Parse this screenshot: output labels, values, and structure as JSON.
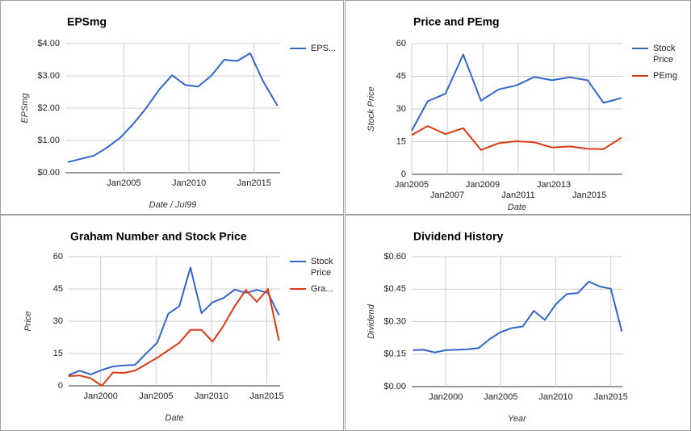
{
  "chart_data": [
    {
      "type": "line",
      "title": "EPSmg",
      "x_label": "Date / Jul99",
      "y_label": "EPSmg",
      "x": [
        2000.7,
        2001.7,
        2002.7,
        2003.7,
        2004.7,
        2005.7,
        2006.7,
        2007.7,
        2008.7,
        2009.7,
        2010.7,
        2011.7,
        2012.7,
        2013.7,
        2014.7,
        2015.7,
        2016.8
      ],
      "series": [
        {
          "name": "EPS...",
          "color": "#3366cc",
          "values": [
            0.33,
            0.43,
            0.53,
            0.78,
            1.08,
            1.5,
            2.0,
            2.57,
            3.02,
            2.72,
            2.67,
            3.0,
            3.5,
            3.46,
            3.7,
            2.83,
            2.07
          ]
        }
      ],
      "xlim": [
        2000.5,
        2017
      ],
      "xticks": [
        {
          "value": 2005,
          "label": "Jan2005"
        },
        {
          "value": 2010,
          "label": "Jan2010"
        },
        {
          "value": 2015,
          "label": "Jan2015"
        }
      ],
      "ylim": [
        0,
        4
      ],
      "yticks": [
        {
          "value": 0,
          "label": "$0.00"
        },
        {
          "value": 1,
          "label": "$1.00"
        },
        {
          "value": 2,
          "label": "$2.00"
        },
        {
          "value": 3,
          "label": "$3.00"
        },
        {
          "value": 4,
          "label": "$4.00"
        }
      ],
      "grid": true,
      "legend": "right"
    },
    {
      "type": "line",
      "title": "Price and PEmg",
      "x_label": "Date",
      "y_label": "Stock Price",
      "x": [
        2005.0,
        2005.9,
        2006.9,
        2007.9,
        2008.9,
        2009.9,
        2010.9,
        2011.9,
        2012.9,
        2013.9,
        2014.9,
        2015.8,
        2016.8
      ],
      "series": [
        {
          "name": "Stock Price",
          "color": "#3366cc",
          "values": [
            20,
            33.5,
            37,
            55,
            33.8,
            39,
            40.8,
            44.7,
            43.2,
            44.5,
            43.2,
            32.8,
            35
          ]
        },
        {
          "name": "PEmg",
          "color": "#dc3912",
          "values": [
            18,
            22.2,
            18.5,
            21.2,
            11.2,
            14.3,
            15.2,
            14.7,
            12.3,
            12.8,
            11.7,
            11.6,
            16.8
          ]
        }
      ],
      "xlim": [
        2005,
        2016.86
      ],
      "xticks": [
        {
          "value": 2005,
          "label": "Jan2005"
        },
        {
          "value": 2007,
          "label": "Jan2007"
        },
        {
          "value": 2009,
          "label": "Jan2009"
        },
        {
          "value": 2011,
          "label": "Jan2011"
        },
        {
          "value": 2013,
          "label": "Jan2013"
        },
        {
          "value": 2015,
          "label": "Jan2015"
        }
      ],
      "ylim": [
        0,
        60
      ],
      "yticks": [
        0,
        15,
        30,
        45,
        60
      ],
      "grid": true,
      "legend": "right"
    },
    {
      "type": "line",
      "title": "Graham Number and Stock Price",
      "x_label": "Date",
      "y_label": "Price",
      "x": [
        1997.1,
        1998.1,
        1999.1,
        2000.1,
        2001.1,
        2002.1,
        2003.1,
        2004.1,
        2005.1,
        2006.1,
        2007.1,
        2008.1,
        2009.1,
        2010.1,
        2011.1,
        2012.1,
        2013.1,
        2014.1,
        2015.1,
        2016.1
      ],
      "series": [
        {
          "name": "Stock Price",
          "color": "#3366cc",
          "values": [
            5,
            7,
            5.3,
            7.3,
            9,
            9.5,
            9.7,
            15,
            20,
            33.5,
            37,
            55,
            33.8,
            38.8,
            40.8,
            44.7,
            43.2,
            44.5,
            43.2,
            32.8
          ]
        },
        {
          "name": "Gra...",
          "color": "#dc3912",
          "values": [
            4.5,
            4.8,
            3.5,
            0,
            6.2,
            6,
            7,
            10,
            13,
            16.5,
            20,
            26,
            26,
            20.5,
            28,
            37,
            44.5,
            39,
            45,
            21
          ]
        }
      ],
      "xlim": [
        1997.1,
        2016.2
      ],
      "xticks": [
        {
          "value": 2000,
          "label": "Jan2000"
        },
        {
          "value": 2005,
          "label": "Jan2005"
        },
        {
          "value": 2010,
          "label": "Jan2010"
        },
        {
          "value": 2015,
          "label": "Jan2015"
        }
      ],
      "ylim": [
        0,
        60
      ],
      "yticks": [
        0,
        15,
        30,
        45,
        60
      ],
      "grid": true,
      "legend": "right"
    },
    {
      "type": "line",
      "title": "Dividend History",
      "x_label": "Year",
      "y_label": "Dividend",
      "x": [
        1997,
        1998,
        1999,
        2000,
        2001,
        2002,
        2003,
        2004,
        2005,
        2006,
        2007,
        2008,
        2009,
        2010,
        2011,
        2012,
        2013,
        2014,
        2015,
        2016
      ],
      "series": [
        {
          "color": "#3366cc",
          "values": [
            0.168,
            0.17,
            0.158,
            0.168,
            0.17,
            0.172,
            0.178,
            0.22,
            0.252,
            0.27,
            0.278,
            0.35,
            0.308,
            0.38,
            0.428,
            0.432,
            0.485,
            0.462,
            0.452,
            0.255
          ]
        }
      ],
      "xlim": [
        1996.9,
        2016.05
      ],
      "xticks": [
        {
          "value": 2000,
          "label": "Jan2000"
        },
        {
          "value": 2005,
          "label": "Jan2005"
        },
        {
          "value": 2010,
          "label": "Jan2010"
        },
        {
          "value": 2015,
          "label": "Jan2015"
        }
      ],
      "ylim": [
        0,
        0.6
      ],
      "yticks": [
        {
          "value": 0,
          "label": "$0.00"
        },
        {
          "value": 0.15,
          "label": "$0.15"
        },
        {
          "value": 0.3,
          "label": "$0.30"
        },
        {
          "value": 0.45,
          "label": "$0.45"
        },
        {
          "value": 0.6,
          "label": "$0.60"
        }
      ],
      "grid": true
    }
  ]
}
